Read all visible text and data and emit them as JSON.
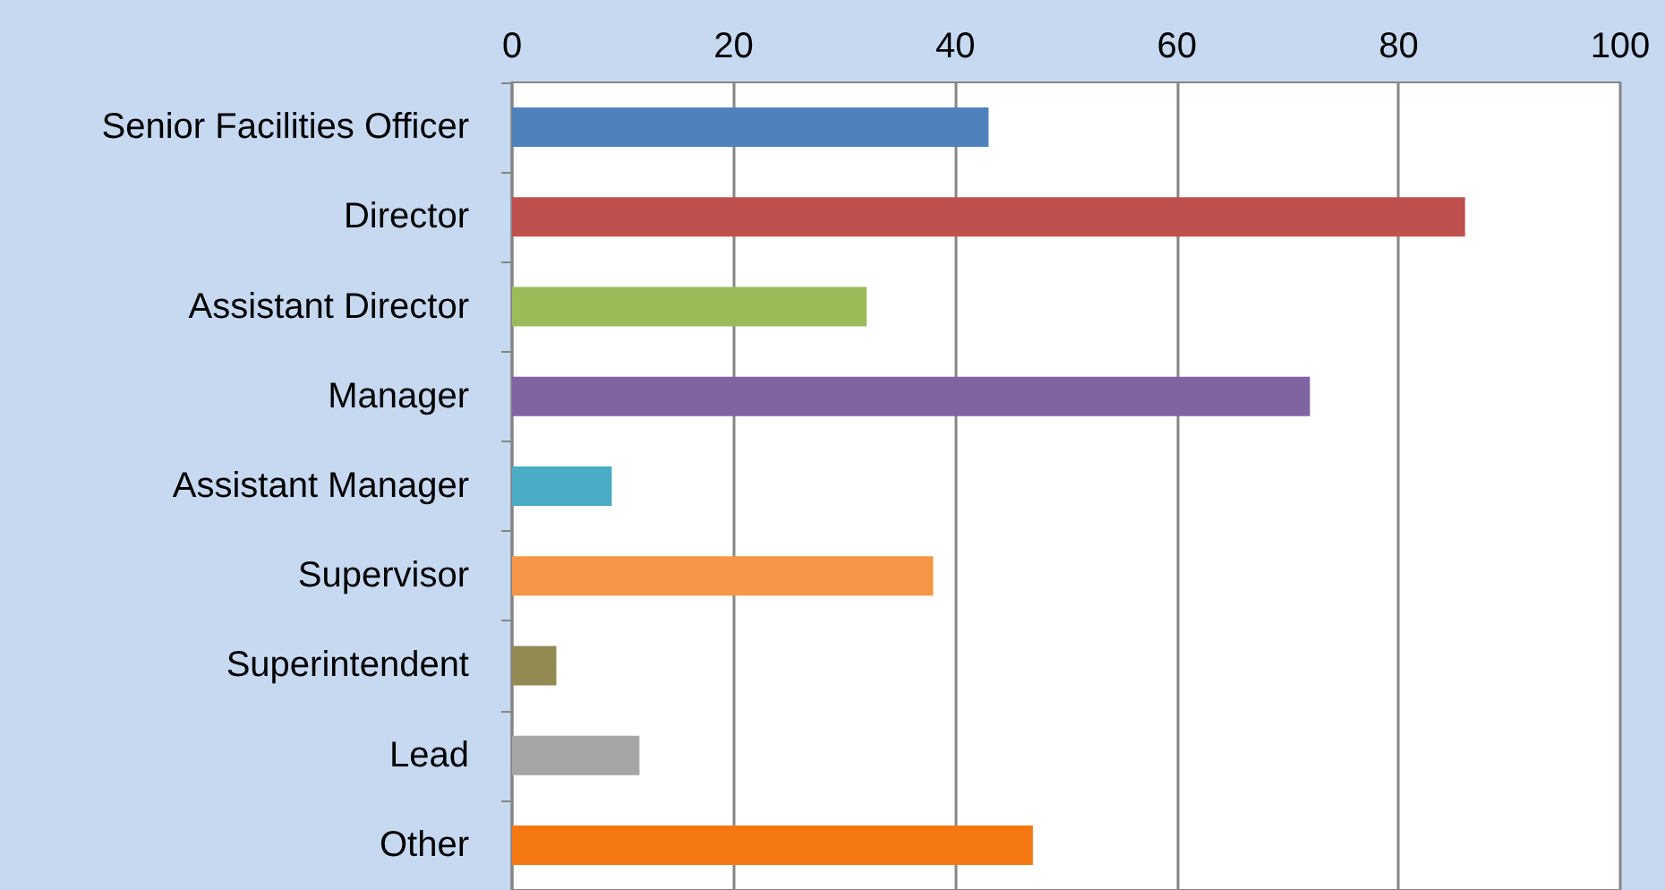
{
  "chart_data": {
    "type": "bar",
    "orientation": "horizontal",
    "categories": [
      "Senior Facilities Officer",
      "Director",
      "Assistant Director",
      "Manager",
      "Assistant Manager",
      "Supervisor",
      "Superintendent",
      "Lead",
      "Other"
    ],
    "values": [
      43,
      86,
      32,
      72,
      9,
      38,
      4,
      11.5,
      47
    ],
    "colors": [
      "#4f81bd",
      "#c0504d",
      "#9bbb59",
      "#8064a2",
      "#4bacc6",
      "#f79646",
      "#938953",
      "#a5a5a5",
      "#f57712"
    ],
    "xlim": [
      0,
      100
    ],
    "xticks": [
      0,
      20,
      40,
      60,
      80,
      100
    ],
    "grid": "x"
  }
}
